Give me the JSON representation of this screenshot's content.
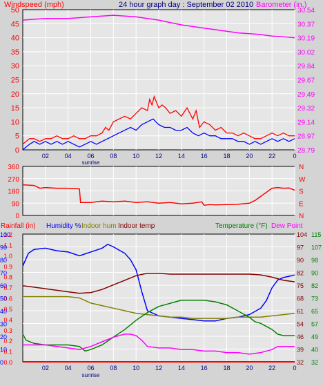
{
  "header": {
    "left_label": "Windspeed (mph)",
    "title": "24 hour graph day : September 02 2010",
    "right_label": "Barometer (in.)"
  },
  "x_ticks": [
    "02",
    "04",
    "06",
    "08",
    "10",
    "12",
    "14",
    "16",
    "18",
    "20",
    "22",
    "0"
  ],
  "sunrise_label": "sunrise",
  "colors": {
    "wind": "#ff0000",
    "gust": "#0000ff",
    "barometer": "#ff00ff",
    "direction": "#ff0000",
    "humidity": "#0000ff",
    "indoor_hum": "#808000",
    "indoor_temp": "#800000",
    "temperature": "#008000",
    "dew_point": "#ff00ff",
    "rainfall": "#ff0000",
    "background": "#e6e6e6"
  },
  "chart_data": [
    {
      "type": "line",
      "name": "wind-barometer",
      "left_axis": {
        "label": "Windspeed (mph)",
        "ticks": [
          "50",
          "45",
          "40",
          "35",
          "30",
          "25",
          "20",
          "15",
          "10",
          "5",
          "0"
        ],
        "range": [
          0,
          50
        ]
      },
      "right_axis": {
        "label": "Barometer (in.)",
        "ticks": [
          "30.54",
          "30.37",
          "30.19",
          "30.02",
          "29.84",
          "29.67",
          "29.49",
          "29.32",
          "29.14",
          "28.97",
          "28.79"
        ],
        "range": [
          28.79,
          30.54
        ]
      },
      "x_range": [
        0,
        24
      ],
      "series": [
        {
          "key": "wind",
          "axis": "left",
          "x": [
            0,
            0.3,
            0.6,
            1,
            1.5,
            2,
            2.5,
            3,
            3.5,
            4,
            4.5,
            5,
            5.5,
            6,
            6.5,
            7,
            7.3,
            7.6,
            8,
            8.5,
            9,
            9.5,
            10,
            10.5,
            11,
            11.2,
            11.4,
            11.6,
            11.8,
            12,
            12.3,
            12.6,
            13,
            13.5,
            14,
            14.5,
            15,
            15.3,
            15.6,
            16,
            16.5,
            17,
            17.5,
            18,
            18.5,
            19,
            19.5,
            20,
            20.5,
            21,
            21.5,
            22,
            22.5,
            23,
            23.5,
            24
          ],
          "y": [
            2,
            3,
            4,
            4,
            3,
            4,
            4,
            5,
            4,
            4,
            5,
            4,
            4,
            5,
            5,
            6,
            8,
            7,
            10,
            11,
            12,
            11,
            13,
            15,
            14,
            18,
            16,
            19,
            17,
            15,
            16,
            15,
            13,
            14,
            12,
            15,
            11,
            14,
            8,
            10,
            9,
            7,
            8,
            6,
            6,
            5,
            6,
            5,
            4,
            4,
            5,
            6,
            5,
            6,
            5,
            5
          ]
        },
        {
          "key": "gust",
          "axis": "left",
          "x": [
            0,
            0.3,
            0.6,
            1,
            1.5,
            2,
            2.5,
            3,
            3.5,
            4,
            4.5,
            5,
            5.5,
            6,
            6.5,
            7,
            7.5,
            8,
            8.5,
            9,
            9.5,
            10,
            10.5,
            11,
            11.5,
            12,
            12.5,
            13,
            13.5,
            14,
            14.5,
            15,
            15.5,
            16,
            16.5,
            17,
            17.5,
            18,
            18.5,
            19,
            19.5,
            20,
            20.5,
            21,
            21.5,
            22,
            22.5,
            23,
            23.5,
            24
          ],
          "y": [
            0,
            1,
            2,
            3,
            2,
            3,
            2,
            3,
            2,
            3,
            2,
            1,
            2,
            3,
            2,
            3,
            4,
            5,
            6,
            7,
            8,
            7,
            9,
            10,
            11,
            9,
            8,
            8,
            7,
            7,
            8,
            6,
            5,
            6,
            5,
            5,
            4,
            4,
            4,
            3,
            3,
            2,
            3,
            2,
            3,
            4,
            3,
            4,
            3,
            4
          ]
        },
        {
          "key": "barometer",
          "axis": "right",
          "x": [
            0,
            1,
            2,
            3,
            4,
            5,
            6,
            7,
            8,
            9,
            10,
            11,
            12,
            13,
            14,
            15,
            16,
            17,
            18,
            19,
            20,
            21,
            22,
            23,
            24
          ],
          "y": [
            30.41,
            30.42,
            30.43,
            30.43,
            30.43,
            30.44,
            30.45,
            30.46,
            30.47,
            30.46,
            30.45,
            30.43,
            30.41,
            30.38,
            30.35,
            30.33,
            30.31,
            30.29,
            30.27,
            30.25,
            30.24,
            30.23,
            30.21,
            30.2,
            30.19
          ]
        }
      ]
    },
    {
      "type": "line",
      "name": "wind-direction",
      "left_axis": {
        "ticks": [
          "360",
          "270",
          "180",
          "90",
          "0"
        ],
        "range": [
          0,
          360
        ]
      },
      "right_axis": {
        "ticks": [
          "N",
          "W",
          "S",
          "E",
          "N"
        ]
      },
      "x_range": [
        0,
        24
      ],
      "series": [
        {
          "key": "direction",
          "axis": "left",
          "x": [
            0,
            1,
            1.5,
            2,
            3,
            4,
            5,
            5.1,
            6,
            7,
            8,
            9,
            10,
            11,
            12,
            13,
            14,
            15,
            15.8,
            16,
            16.5,
            17,
            18,
            19,
            20,
            20.5,
            21,
            21.5,
            22,
            22.5,
            23,
            23.5,
            24
          ],
          "y": [
            225,
            220,
            200,
            205,
            200,
            200,
            195,
            95,
            95,
            105,
            100,
            105,
            95,
            100,
            90,
            95,
            85,
            90,
            100,
            75,
            80,
            78,
            80,
            82,
            90,
            110,
            140,
            170,
            200,
            205,
            200,
            202,
            185
          ]
        }
      ]
    },
    {
      "type": "line",
      "name": "humidity-temperature",
      "header": {
        "rainfall": "Rainfall (in)",
        "humidity": "Humidity %",
        "indoor_hum": "Indoor hum",
        "indoor_temp": "Indoor temp",
        "temperature": "Temperature (°F)",
        "dew_point": "Dew Point"
      },
      "rain_axis": {
        "ticks": [
          "1.2",
          "1.1",
          "1.0",
          "0.9",
          "0.8",
          "0.7",
          "0.6",
          "0.5",
          "0.4",
          "0.3",
          "0.2",
          "0.1",
          "0.0"
        ],
        "range": [
          0,
          1.2
        ]
      },
      "humidity_axis": {
        "ticks": [
          "100",
          "90",
          "80",
          "70",
          "60",
          "50",
          "40",
          "30",
          "20",
          "10",
          "0"
        ],
        "range": [
          0,
          100
        ]
      },
      "temp_axis": {
        "ticks": [
          "104",
          "97",
          "90",
          "82",
          "75",
          "68",
          "61",
          "54",
          "46",
          "39",
          "32"
        ]
      },
      "temp_axis2": {
        "ticks": [
          "115",
          "107",
          "98",
          "90",
          "82",
          "73",
          "65",
          "57",
          "49",
          "40",
          "32"
        ],
        "range": [
          32,
          115
        ]
      },
      "x_range": [
        0,
        24
      ],
      "series": [
        {
          "key": "humidity",
          "axis": "humidity",
          "x": [
            0,
            0.5,
            1,
            2,
            3,
            4,
            5,
            6,
            7,
            7.5,
            8,
            9,
            9.5,
            10,
            10.5,
            11,
            12,
            13,
            14,
            15,
            16,
            17,
            18,
            19,
            20,
            21,
            21.5,
            22,
            22.5,
            23,
            23.5,
            24
          ],
          "y": [
            75,
            85,
            88,
            89,
            87,
            86,
            83,
            86,
            89,
            92,
            90,
            85,
            80,
            72,
            55,
            40,
            36,
            35,
            34,
            33,
            32,
            32,
            34,
            35,
            37,
            42,
            48,
            58,
            64,
            66,
            67,
            68
          ]
        },
        {
          "key": "indoor_hum",
          "axis": "humidity",
          "x": [
            0,
            1,
            2,
            3,
            4,
            5,
            6,
            7,
            8,
            9,
            10,
            11,
            12,
            13,
            14,
            15,
            16,
            17,
            18,
            19,
            20,
            21,
            22,
            23,
            24
          ],
          "y": [
            51,
            51,
            51,
            51,
            51,
            50,
            46,
            44,
            42,
            40,
            38,
            37,
            36,
            35,
            35,
            34,
            34,
            34,
            34,
            35,
            35,
            35,
            36,
            37,
            38
          ]
        },
        {
          "key": "indoor_temp",
          "axis": "temp2",
          "x": [
            0,
            1,
            2,
            3,
            4,
            5,
            6,
            7,
            8,
            9,
            10,
            11,
            12,
            13,
            14,
            15,
            16,
            17,
            18,
            19,
            20,
            21,
            22,
            23,
            24
          ],
          "y": [
            81.5,
            80.5,
            79.5,
            78.5,
            77.5,
            76.5,
            77,
            79,
            82,
            85,
            88,
            89.5,
            89.5,
            89,
            89,
            89,
            89,
            89,
            89,
            89,
            89,
            88.5,
            87,
            85,
            84
          ]
        },
        {
          "key": "temperature",
          "axis": "temp2",
          "x": [
            0,
            0.3,
            1,
            2,
            3,
            4,
            5,
            5.5,
            6,
            7,
            8,
            9,
            10,
            11,
            12,
            13,
            14,
            15,
            16,
            17,
            18,
            19,
            20,
            20.5,
            21,
            22,
            22.5,
            23,
            24
          ],
          "y": [
            50,
            46,
            44,
            43,
            43,
            43,
            42,
            39,
            40,
            43,
            48,
            53,
            59,
            64,
            68,
            70,
            72,
            72,
            72,
            71,
            69,
            65,
            61,
            58,
            57,
            53,
            50,
            49,
            49
          ]
        },
        {
          "key": "dew_point",
          "axis": "temp2",
          "x": [
            0,
            1,
            2,
            3,
            4,
            5,
            6,
            7,
            8,
            9,
            9.5,
            10,
            10.5,
            11,
            12,
            13,
            14,
            15,
            16,
            17,
            18,
            19,
            20,
            21,
            22,
            22.5,
            23,
            24
          ],
          "y": [
            43,
            43,
            43,
            42,
            41,
            40,
            42,
            45,
            48,
            50,
            50,
            49,
            46,
            42,
            41,
            41,
            40,
            40,
            39,
            39,
            38,
            38,
            37,
            38,
            40,
            42,
            42,
            42
          ]
        },
        {
          "key": "rainfall",
          "axis": "rain",
          "x": [
            0,
            24
          ],
          "y": [
            0,
            0
          ]
        }
      ]
    }
  ]
}
